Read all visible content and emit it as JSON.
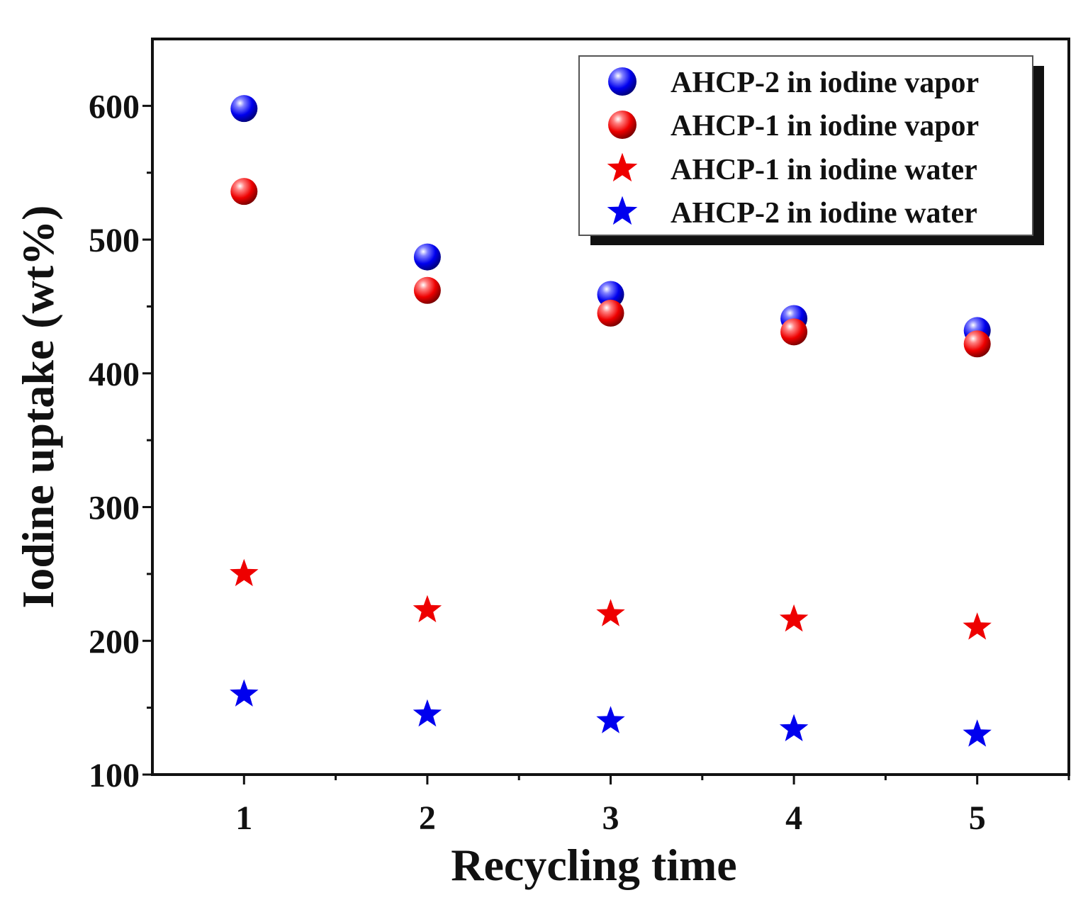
{
  "chart_data": {
    "type": "scatter",
    "title": "",
    "xlabel": "Recycling time",
    "ylabel": "Iodine uptake (wt%)",
    "xlim": [
      0.5,
      5.5
    ],
    "ylim": [
      100,
      650
    ],
    "x": [
      1,
      2,
      3,
      4,
      5
    ],
    "xticks": [
      "1",
      "2",
      "3",
      "4",
      "5"
    ],
    "yticks": [
      "100",
      "200",
      "300",
      "400",
      "500",
      "600"
    ],
    "grid": false,
    "legend_position": "top-right",
    "series": [
      {
        "name": "AHCP-2 in iodine vapor",
        "marker": "sphere",
        "color": "#0000ee",
        "values": [
          598,
          487,
          459,
          441,
          432
        ]
      },
      {
        "name": "AHCP-1 in iodine vapor",
        "marker": "sphere",
        "color": "#ee0000",
        "values": [
          536,
          462,
          445,
          431,
          422
        ]
      },
      {
        "name": "AHCP-1 in iodine water",
        "marker": "star",
        "color": "#ee0000",
        "values": [
          250,
          223,
          220,
          216,
          210
        ]
      },
      {
        "name": "AHCP-2 in iodine water",
        "marker": "star",
        "color": "#0000ee",
        "values": [
          160,
          145,
          140,
          134,
          130
        ]
      }
    ]
  }
}
